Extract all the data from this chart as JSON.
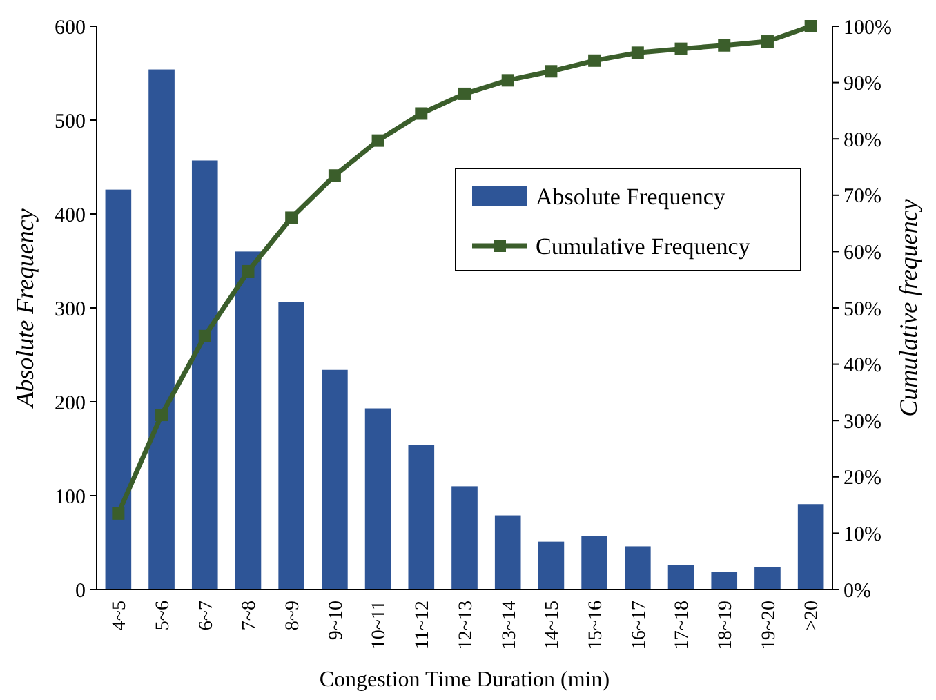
{
  "chart_data": {
    "type": "bar",
    "xlabel": "Congestion Time Duration (min)",
    "ylabel": "Absolute Frequency",
    "y2label": "Cumulative frequency",
    "categories": [
      "4~5",
      "5~6",
      "6~7",
      "7~8",
      "8~9",
      "9~10",
      "10~11",
      "11~12",
      "12~13",
      "13~14",
      "14~15",
      "15~16",
      "16~17",
      "17~18",
      "18~19",
      "19~20",
      ">20"
    ],
    "series": [
      {
        "name": "Absolute Frequency",
        "color": "#2e5597",
        "values": [
          426,
          554,
          457,
          360,
          306,
          234,
          193,
          154,
          110,
          79,
          51,
          57,
          46,
          26,
          19,
          24,
          91
        ]
      },
      {
        "name": "Cumulative Frequency",
        "type": "line",
        "axis": "y2",
        "color": "#3b5e2b",
        "marker": "square",
        "values": [
          13.5,
          31,
          45,
          56.5,
          66,
          73.5,
          79.7,
          84.5,
          88,
          90.4,
          92,
          93.9,
          95.3,
          96,
          96.6,
          97.3,
          100
        ]
      }
    ],
    "ylim": [
      0,
      600
    ],
    "yticks": [
      0,
      100,
      200,
      300,
      400,
      500,
      600
    ],
    "y2lim": [
      0,
      100
    ],
    "y2ticks": [
      {
        "value": 0,
        "label": "0%"
      },
      {
        "value": 10,
        "label": "10%"
      },
      {
        "value": 20,
        "label": "20%"
      },
      {
        "value": 30,
        "label": "30%"
      },
      {
        "value": 40,
        "label": "40%"
      },
      {
        "value": 50,
        "label": "50%"
      },
      {
        "value": 60,
        "label": "60%"
      },
      {
        "value": 70,
        "label": "70%"
      },
      {
        "value": 80,
        "label": "80%"
      },
      {
        "value": 90,
        "label": "90%"
      },
      {
        "value": 100,
        "label": "100%"
      }
    ],
    "legend": "top right",
    "grid": false
  }
}
